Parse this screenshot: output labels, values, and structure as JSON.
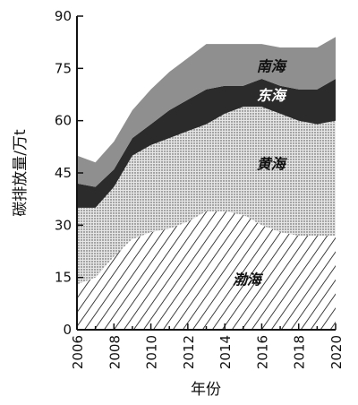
{
  "chart_data": {
    "type": "area",
    "stacked": true,
    "xlabel": "年份",
    "ylabel": "碳排放量/万t",
    "xlim": [
      2006,
      2020
    ],
    "ylim": [
      0,
      90
    ],
    "x_ticks": [
      "2006",
      "2008",
      "2010",
      "2012",
      "2014",
      "2016",
      "2018",
      "2020"
    ],
    "y_ticks": [
      "0",
      "15",
      "30",
      "45",
      "60",
      "75",
      "90"
    ],
    "x": [
      2006,
      2007,
      2008,
      2009,
      2010,
      2011,
      2012,
      2013,
      2014,
      2015,
      2016,
      2017,
      2018,
      2019,
      2020
    ],
    "series": [
      {
        "name": "渤海",
        "fill": "hatch",
        "label_color": "#111111",
        "values": [
          13,
          15,
          21,
          26,
          28,
          29,
          31,
          34,
          34,
          33,
          30,
          28,
          27,
          27,
          27
        ]
      },
      {
        "name": "黄海",
        "fill": "dots",
        "label_color": "#111111",
        "values": [
          22,
          20,
          20,
          24,
          25,
          26,
          26,
          25,
          28,
          31,
          34,
          34,
          33,
          32,
          33
        ]
      },
      {
        "name": "东海",
        "fill": "#2b2b2b",
        "label_color": "#ffffff",
        "values": [
          7,
          6,
          5,
          5,
          6,
          8,
          9,
          10,
          8,
          6,
          8,
          8,
          9,
          10,
          12
        ]
      },
      {
        "name": "南海",
        "fill": "#8f8f8f",
        "label_color": "#111111",
        "values": [
          8,
          7,
          8,
          8,
          10,
          11,
          12,
          13,
          12,
          12,
          10,
          11,
          12,
          12,
          12
        ]
      }
    ],
    "grid": false,
    "legend": "inline"
  }
}
